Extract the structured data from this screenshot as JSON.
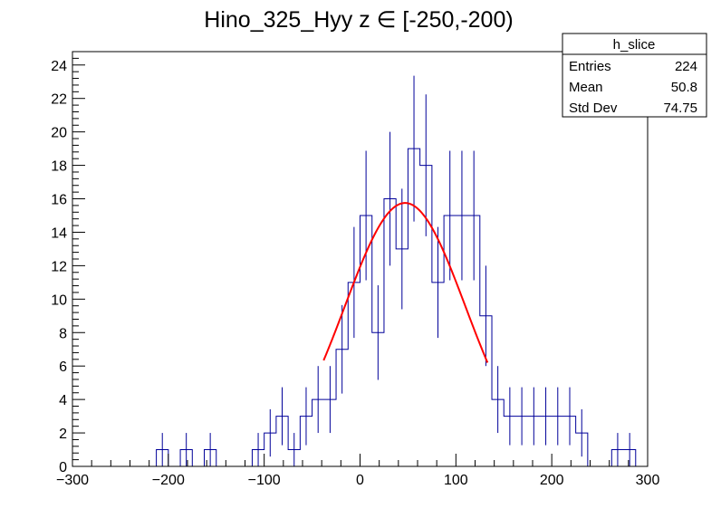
{
  "chart_data": {
    "type": "histogram",
    "title": "Hino_325_Hyy z  ∈ [-250,-200)",
    "xlabel": "",
    "ylabel": "",
    "xlim": [
      -300,
      300
    ],
    "ylim": [
      0,
      24.8
    ],
    "grid": false,
    "bin_width": 12.5,
    "bin_start": -300,
    "hist_color": "#000099",
    "fit_color": "#ff0000",
    "x_ticks": [
      -300,
      -200,
      -100,
      0,
      100,
      200,
      300
    ],
    "x_tick_labels": [
      "−300",
      "−200",
      "−100",
      "0",
      "100",
      "200",
      "300"
    ],
    "y_ticks": [
      0,
      2,
      4,
      6,
      8,
      10,
      12,
      14,
      16,
      18,
      20,
      22,
      24
    ],
    "y_tick_labels": [
      "0",
      "2",
      "4",
      "6",
      "8",
      "10",
      "12",
      "14",
      "16",
      "18",
      "20",
      "22",
      "24"
    ],
    "counts": [
      0,
      0,
      0,
      0,
      0,
      0,
      0,
      1,
      0,
      1,
      0,
      1,
      0,
      0,
      0,
      1,
      2,
      3,
      1,
      3,
      4,
      4,
      7,
      11,
      15,
      8,
      16,
      13,
      19,
      18,
      11,
      15,
      15,
      15,
      9,
      4,
      3,
      3,
      3,
      3,
      3,
      3,
      2,
      0,
      0,
      1,
      1,
      0
    ],
    "fit": {
      "type": "gaussian",
      "constant": 15.75,
      "mean": 47,
      "sigma": 63,
      "range": [
        -38,
        133
      ]
    },
    "stats_box": {
      "title": "h_slice",
      "rows": [
        {
          "label": "Entries",
          "value": "224"
        },
        {
          "label": "Mean",
          "value": "50.8"
        },
        {
          "label": "Std Dev",
          "value": "74.75"
        }
      ]
    }
  }
}
